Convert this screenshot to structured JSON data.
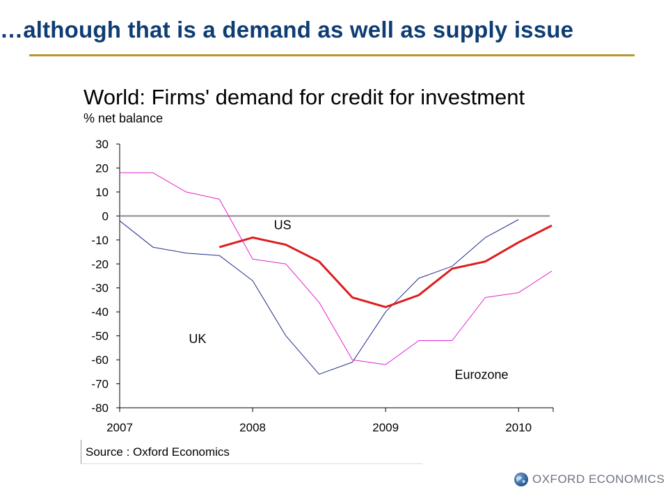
{
  "slide": {
    "title": "…although that is a demand as well as supply issue",
    "source": "Source : Oxford Economics",
    "logo_text": "OXFORD ECONOMICS",
    "colors": {
      "title": "#0f3d73",
      "rule": "#b8962e"
    }
  },
  "chart_data": {
    "type": "line",
    "title": "World: Firms' demand for credit for investment",
    "subtitle": "% net balance",
    "xlabel": "",
    "ylabel": "",
    "xlim": [
      2007,
      2010.25
    ],
    "ylim": [
      -80,
      30
    ],
    "yticks": [
      30,
      20,
      10,
      0,
      -10,
      -20,
      -30,
      -40,
      -50,
      -60,
      -70,
      -80
    ],
    "xticks": [
      2007,
      2008,
      2009,
      2010
    ],
    "grid": false,
    "zero_line": true,
    "series": [
      {
        "name": "UK",
        "color": "#1f2a8a",
        "width": 1,
        "x": [
          2007,
          2007.25,
          2007.5,
          2007.75,
          2008,
          2008.25,
          2008.5,
          2008.75,
          2009,
          2009.25,
          2009.5,
          2009.75,
          2010
        ],
        "values": [
          -2,
          -13,
          -15.5,
          -16.5,
          -27,
          -50,
          -66,
          -61,
          -40,
          -26,
          -21,
          -9,
          -1.5
        ]
      },
      {
        "name": "US",
        "color": "#dd1c1c",
        "width": 3,
        "x": [
          2007.75,
          2008,
          2008.25,
          2008.5,
          2008.75,
          2009,
          2009.25,
          2009.5,
          2009.75,
          2010,
          2010.25
        ],
        "values": [
          -13,
          -9,
          -12,
          -19,
          -34,
          -38,
          -33,
          -22,
          -19,
          -11,
          -4
        ]
      },
      {
        "name": "Eurozone",
        "color": "#e020d0",
        "width": 1,
        "x": [
          2007,
          2007.25,
          2007.5,
          2007.75,
          2008,
          2008.25,
          2008.5,
          2008.75,
          2009,
          2009.25,
          2009.5,
          2009.75,
          2010,
          2010.25
        ],
        "values": [
          18,
          18,
          10,
          7,
          -18,
          -20,
          -36,
          -60,
          -62,
          -52,
          -52,
          -34,
          -32,
          -23
        ]
      }
    ],
    "annotations": [
      {
        "text": "US",
        "x": 2008.16,
        "y": -5.5
      },
      {
        "text": "UK",
        "x": 2007.52,
        "y": -53
      },
      {
        "text": "Eurozone",
        "x": 2009.52,
        "y": -68
      }
    ]
  }
}
